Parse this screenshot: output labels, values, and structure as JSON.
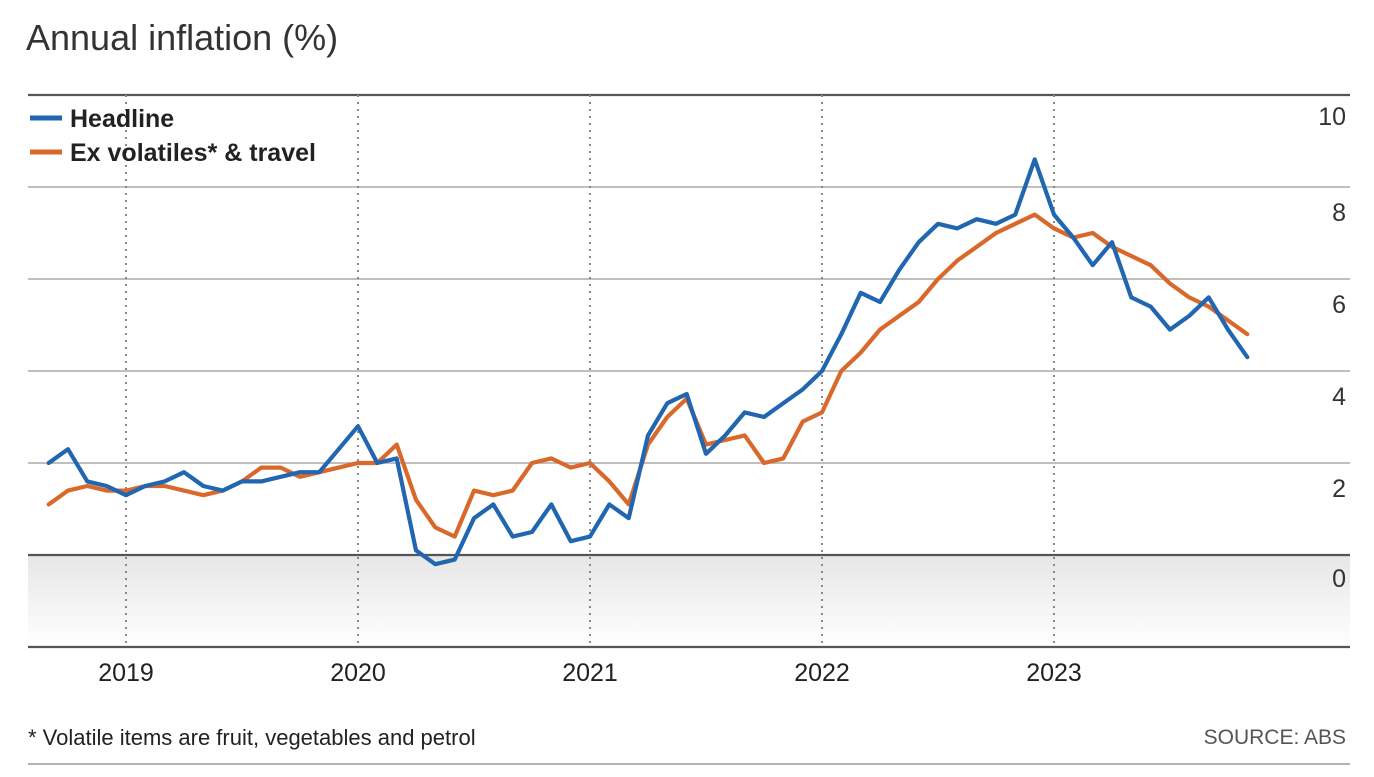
{
  "chart_data": {
    "type": "line",
    "title": "Annual inflation (%)",
    "xlabel": "",
    "ylabel": "",
    "ylim": [
      -2,
      10
    ],
    "yticks": [
      0,
      2,
      4,
      6,
      8,
      10
    ],
    "xlim": [
      2018.7,
      2024.2
    ],
    "xticks": [
      2019,
      2020,
      2021,
      2022,
      2023
    ],
    "xtick_labels": [
      "2019",
      "2020",
      "2021",
      "2022",
      "2023"
    ],
    "grid": "horizontal solid lines, vertical dotted lines at years",
    "legend": "top-left",
    "footnote": "* Volatile items are fruit, vegetables and petrol",
    "source": "SOURCE: ABS",
    "series": [
      {
        "name": "Headline",
        "color": "#2166b0",
        "x": [
          2018.667,
          2018.75,
          2018.833,
          2018.917,
          2019.0,
          2019.083,
          2019.167,
          2019.25,
          2019.333,
          2019.417,
          2019.5,
          2019.583,
          2019.667,
          2019.75,
          2019.833,
          2019.917,
          2020.0,
          2020.083,
          2020.167,
          2020.25,
          2020.333,
          2020.417,
          2020.5,
          2020.583,
          2020.667,
          2020.75,
          2020.833,
          2020.917,
          2021.0,
          2021.083,
          2021.167,
          2021.25,
          2021.333,
          2021.417,
          2021.5,
          2021.583,
          2021.667,
          2021.75,
          2021.833,
          2021.917,
          2022.0,
          2022.083,
          2022.167,
          2022.25,
          2022.333,
          2022.417,
          2022.5,
          2022.583,
          2022.667,
          2022.75,
          2022.833,
          2022.917,
          2023.0,
          2023.083,
          2023.167,
          2023.25,
          2023.333,
          2023.417,
          2023.5,
          2023.583,
          2023.667,
          2023.75,
          2023.833
        ],
        "values": [
          2.0,
          2.3,
          1.6,
          1.5,
          1.3,
          1.5,
          1.6,
          1.8,
          1.5,
          1.4,
          1.6,
          1.6,
          1.7,
          1.8,
          1.8,
          2.3,
          2.8,
          2.0,
          2.1,
          0.1,
          -0.2,
          -0.1,
          0.8,
          1.1,
          0.4,
          0.5,
          1.1,
          0.3,
          0.4,
          1.1,
          0.8,
          2.6,
          3.3,
          3.5,
          2.2,
          2.6,
          3.1,
          3.0,
          3.3,
          3.6,
          4.0,
          4.8,
          5.7,
          5.5,
          6.2,
          6.8,
          7.2,
          7.1,
          7.3,
          7.2,
          7.4,
          8.6,
          7.4,
          6.9,
          6.3,
          6.8,
          5.6,
          5.4,
          4.9,
          5.2,
          5.6,
          4.9,
          4.3
        ]
      },
      {
        "name": "Ex volatiles* & travel",
        "color": "#d9692b",
        "x": [
          2018.667,
          2018.75,
          2018.833,
          2018.917,
          2019.0,
          2019.083,
          2019.167,
          2019.25,
          2019.333,
          2019.417,
          2019.5,
          2019.583,
          2019.667,
          2019.75,
          2019.833,
          2019.917,
          2020.0,
          2020.083,
          2020.167,
          2020.25,
          2020.333,
          2020.417,
          2020.5,
          2020.583,
          2020.667,
          2020.75,
          2020.833,
          2020.917,
          2021.0,
          2021.083,
          2021.167,
          2021.25,
          2021.333,
          2021.417,
          2021.5,
          2021.583,
          2021.667,
          2021.75,
          2021.833,
          2021.917,
          2022.0,
          2022.083,
          2022.167,
          2022.25,
          2022.333,
          2022.417,
          2022.5,
          2022.583,
          2022.667,
          2022.75,
          2022.833,
          2022.917,
          2023.0,
          2023.083,
          2023.167,
          2023.25,
          2023.333,
          2023.417,
          2023.5,
          2023.583,
          2023.667,
          2023.75,
          2023.833
        ],
        "values": [
          1.1,
          1.4,
          1.5,
          1.4,
          1.4,
          1.5,
          1.5,
          1.4,
          1.3,
          1.4,
          1.6,
          1.9,
          1.9,
          1.7,
          1.8,
          1.9,
          2.0,
          2.0,
          2.4,
          1.2,
          0.6,
          0.4,
          1.4,
          1.3,
          1.4,
          2.0,
          2.1,
          1.9,
          2.0,
          1.6,
          1.1,
          2.4,
          3.0,
          3.4,
          2.4,
          2.5,
          2.6,
          2.0,
          2.1,
          2.9,
          3.1,
          4.0,
          4.4,
          4.9,
          5.2,
          5.5,
          6.0,
          6.4,
          6.7,
          7.0,
          7.2,
          7.4,
          7.1,
          6.9,
          7.0,
          6.7,
          6.5,
          6.3,
          5.9,
          5.6,
          5.4,
          5.1,
          4.8
        ]
      }
    ]
  }
}
